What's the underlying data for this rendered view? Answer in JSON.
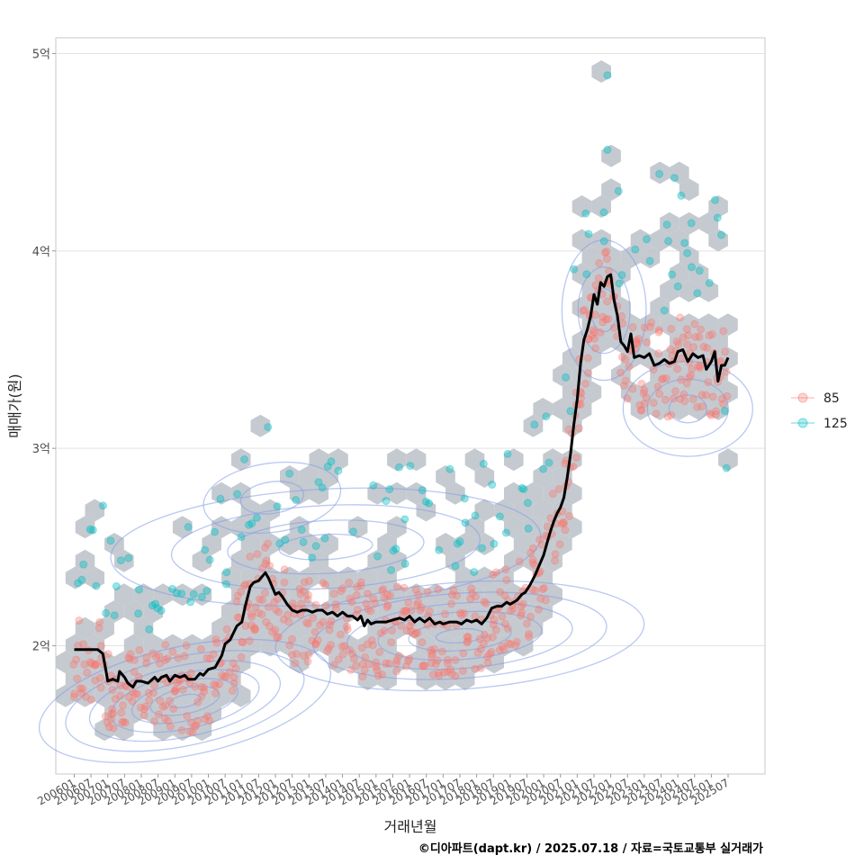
{
  "chart_data": {
    "type": "scatter",
    "title": "",
    "xlabel": "거래년월",
    "ylabel": "매매가(원)",
    "caption": "©디아파트(dapt.kr) / 2025.07.18 / 자료=국토교통부 실거래가",
    "ylim": [
      1.35,
      5.08
    ],
    "xlim": [
      2005.45,
      2026.6
    ],
    "y_ticks": [
      {
        "value": 2,
        "label": "2억"
      },
      {
        "value": 3,
        "label": "3억"
      },
      {
        "value": 4,
        "label": "4억"
      },
      {
        "value": 5,
        "label": "5억"
      }
    ],
    "x_tick_labels": [
      "200601",
      "200607",
      "200701",
      "200707",
      "200801",
      "200807",
      "200901",
      "200907",
      "201001",
      "201007",
      "201101",
      "201107",
      "201201",
      "201207",
      "201301",
      "201307",
      "201401",
      "201407",
      "201501",
      "201507",
      "201601",
      "201607",
      "201701",
      "201707",
      "201801",
      "201807",
      "201901",
      "201907",
      "202001",
      "202007",
      "202101",
      "202107",
      "202201",
      "202207",
      "202301",
      "202307",
      "202401",
      "202407",
      "202501",
      "202507"
    ],
    "x_tick_start": 2006.0,
    "x_tick_step": 0.5,
    "legend": [
      {
        "name": "85",
        "color": "#F8766D"
      },
      {
        "name": "125",
        "color": "#00BFC4"
      }
    ],
    "median_line": [
      [
        2006.0,
        1.98
      ],
      [
        2006.4,
        1.98
      ],
      [
        2006.7,
        1.98
      ],
      [
        2006.85,
        1.96
      ],
      [
        2006.95,
        1.87
      ],
      [
        2007.0,
        1.82
      ],
      [
        2007.15,
        1.83
      ],
      [
        2007.3,
        1.82
      ],
      [
        2007.35,
        1.87
      ],
      [
        2007.5,
        1.84
      ],
      [
        2007.6,
        1.81
      ],
      [
        2007.75,
        1.79
      ],
      [
        2007.85,
        1.82
      ],
      [
        2008.0,
        1.82
      ],
      [
        2008.2,
        1.81
      ],
      [
        2008.4,
        1.84
      ],
      [
        2008.5,
        1.82
      ],
      [
        2008.6,
        1.84
      ],
      [
        2008.75,
        1.85
      ],
      [
        2008.85,
        1.82
      ],
      [
        2009.0,
        1.85
      ],
      [
        2009.15,
        1.84
      ],
      [
        2009.3,
        1.85
      ],
      [
        2009.4,
        1.83
      ],
      [
        2009.6,
        1.83
      ],
      [
        2009.75,
        1.86
      ],
      [
        2009.85,
        1.85
      ],
      [
        2010.0,
        1.88
      ],
      [
        2010.2,
        1.89
      ],
      [
        2010.3,
        1.92
      ],
      [
        2010.4,
        1.95
      ],
      [
        2010.5,
        2.01
      ],
      [
        2010.65,
        2.03
      ],
      [
        2010.85,
        2.1
      ],
      [
        2011.0,
        2.12
      ],
      [
        2011.1,
        2.2
      ],
      [
        2011.25,
        2.3
      ],
      [
        2011.35,
        2.32
      ],
      [
        2011.5,
        2.33
      ],
      [
        2011.7,
        2.37
      ],
      [
        2011.8,
        2.34
      ],
      [
        2011.9,
        2.3
      ],
      [
        2012.0,
        2.26
      ],
      [
        2012.1,
        2.27
      ],
      [
        2012.2,
        2.25
      ],
      [
        2012.35,
        2.21
      ],
      [
        2012.5,
        2.18
      ],
      [
        2012.65,
        2.17
      ],
      [
        2012.8,
        2.18
      ],
      [
        2012.95,
        2.18
      ],
      [
        2013.1,
        2.17
      ],
      [
        2013.25,
        2.18
      ],
      [
        2013.4,
        2.18
      ],
      [
        2013.55,
        2.16
      ],
      [
        2013.7,
        2.17
      ],
      [
        2013.85,
        2.15
      ],
      [
        2014.0,
        2.17
      ],
      [
        2014.15,
        2.15
      ],
      [
        2014.3,
        2.15
      ],
      [
        2014.45,
        2.13
      ],
      [
        2014.55,
        2.15
      ],
      [
        2014.65,
        2.1
      ],
      [
        2014.75,
        2.13
      ],
      [
        2014.85,
        2.11
      ],
      [
        2015.0,
        2.12
      ],
      [
        2015.3,
        2.12
      ],
      [
        2015.5,
        2.13
      ],
      [
        2015.7,
        2.14
      ],
      [
        2015.85,
        2.13
      ],
      [
        2016.0,
        2.15
      ],
      [
        2016.15,
        2.12
      ],
      [
        2016.3,
        2.14
      ],
      [
        2016.45,
        2.12
      ],
      [
        2016.6,
        2.14
      ],
      [
        2016.75,
        2.11
      ],
      [
        2016.9,
        2.12
      ],
      [
        2017.0,
        2.11
      ],
      [
        2017.2,
        2.12
      ],
      [
        2017.4,
        2.12
      ],
      [
        2017.55,
        2.11
      ],
      [
        2017.7,
        2.13
      ],
      [
        2017.85,
        2.12
      ],
      [
        2018.0,
        2.13
      ],
      [
        2018.15,
        2.11
      ],
      [
        2018.3,
        2.14
      ],
      [
        2018.45,
        2.19
      ],
      [
        2018.6,
        2.2
      ],
      [
        2018.75,
        2.2
      ],
      [
        2018.9,
        2.22
      ],
      [
        2019.0,
        2.21
      ],
      [
        2019.2,
        2.23
      ],
      [
        2019.35,
        2.26
      ],
      [
        2019.45,
        2.27
      ],
      [
        2019.6,
        2.31
      ],
      [
        2019.75,
        2.36
      ],
      [
        2019.85,
        2.4
      ],
      [
        2020.0,
        2.46
      ],
      [
        2020.1,
        2.52
      ],
      [
        2020.2,
        2.58
      ],
      [
        2020.3,
        2.63
      ],
      [
        2020.4,
        2.67
      ],
      [
        2020.5,
        2.7
      ],
      [
        2020.6,
        2.75
      ],
      [
        2020.7,
        2.85
      ],
      [
        2020.8,
        2.97
      ],
      [
        2020.9,
        3.12
      ],
      [
        2021.0,
        3.25
      ],
      [
        2021.1,
        3.43
      ],
      [
        2021.2,
        3.55
      ],
      [
        2021.3,
        3.6
      ],
      [
        2021.4,
        3.67
      ],
      [
        2021.5,
        3.78
      ],
      [
        2021.6,
        3.73
      ],
      [
        2021.7,
        3.84
      ],
      [
        2021.8,
        3.82
      ],
      [
        2021.9,
        3.87
      ],
      [
        2022.0,
        3.88
      ],
      [
        2022.1,
        3.75
      ],
      [
        2022.2,
        3.67
      ],
      [
        2022.3,
        3.54
      ],
      [
        2022.4,
        3.52
      ],
      [
        2022.5,
        3.49
      ],
      [
        2022.6,
        3.58
      ],
      [
        2022.7,
        3.46
      ],
      [
        2022.85,
        3.47
      ],
      [
        2023.0,
        3.46
      ],
      [
        2023.15,
        3.48
      ],
      [
        2023.3,
        3.42
      ],
      [
        2023.45,
        3.43
      ],
      [
        2023.6,
        3.45
      ],
      [
        2023.75,
        3.43
      ],
      [
        2023.9,
        3.44
      ],
      [
        2024.0,
        3.49
      ],
      [
        2024.15,
        3.5
      ],
      [
        2024.3,
        3.44
      ],
      [
        2024.45,
        3.48
      ],
      [
        2024.6,
        3.46
      ],
      [
        2024.75,
        3.47
      ],
      [
        2024.85,
        3.4
      ],
      [
        2025.0,
        3.44
      ],
      [
        2025.1,
        3.49
      ],
      [
        2025.2,
        3.34
      ],
      [
        2025.3,
        3.42
      ],
      [
        2025.4,
        3.42
      ],
      [
        2025.5,
        3.46
      ]
    ]
  }
}
